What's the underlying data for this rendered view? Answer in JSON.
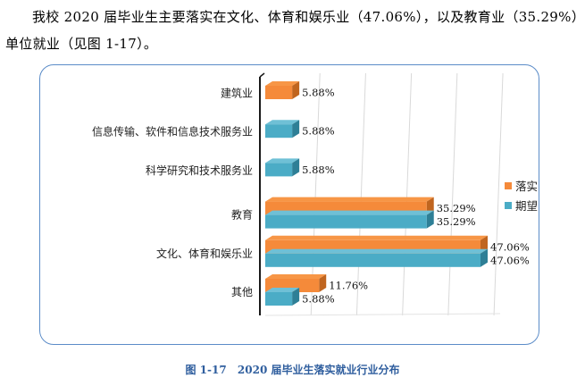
{
  "paragraph": {
    "text": "我校 2020 届毕业生主要落实在文化、体育和娱乐业（47.06%），以及教育业（35.29%）单位就业（见图 1-17）。"
  },
  "caption": {
    "number": "图 1-17",
    "title": "2020 届毕业生落实就业行业分布"
  },
  "colors": {
    "actual_top": "#f79646",
    "actual_front": "#f58a3a",
    "actual_end": "#c0651f",
    "expected_top": "#6fc0d6",
    "expected_front": "#4bacc6",
    "expected_end": "#2e7f96",
    "frame": "#5b8cc8",
    "caption": "#2f5e9e"
  },
  "chart_data": {
    "type": "bar",
    "orientation": "horizontal",
    "three_d": true,
    "categories": [
      "建筑业",
      "信息传输、软件和信息技术服务业",
      "科学研究和技术服务业",
      "教育",
      "文化、体育和娱乐业",
      "其他"
    ],
    "series": [
      {
        "name": "落实",
        "values": [
          5.88,
          null,
          null,
          35.29,
          47.06,
          11.76
        ],
        "labels": [
          "5.88%",
          "",
          "",
          "35.29%",
          "47.06%",
          "11.76%"
        ]
      },
      {
        "name": "期望",
        "values": [
          null,
          5.88,
          5.88,
          35.29,
          47.06,
          5.88
        ],
        "labels": [
          "",
          "5.88%",
          "5.88%",
          "35.29%",
          "47.06%",
          "5.88%"
        ]
      }
    ],
    "xlim": [
      0,
      50
    ],
    "grid": true,
    "legend": "right"
  }
}
